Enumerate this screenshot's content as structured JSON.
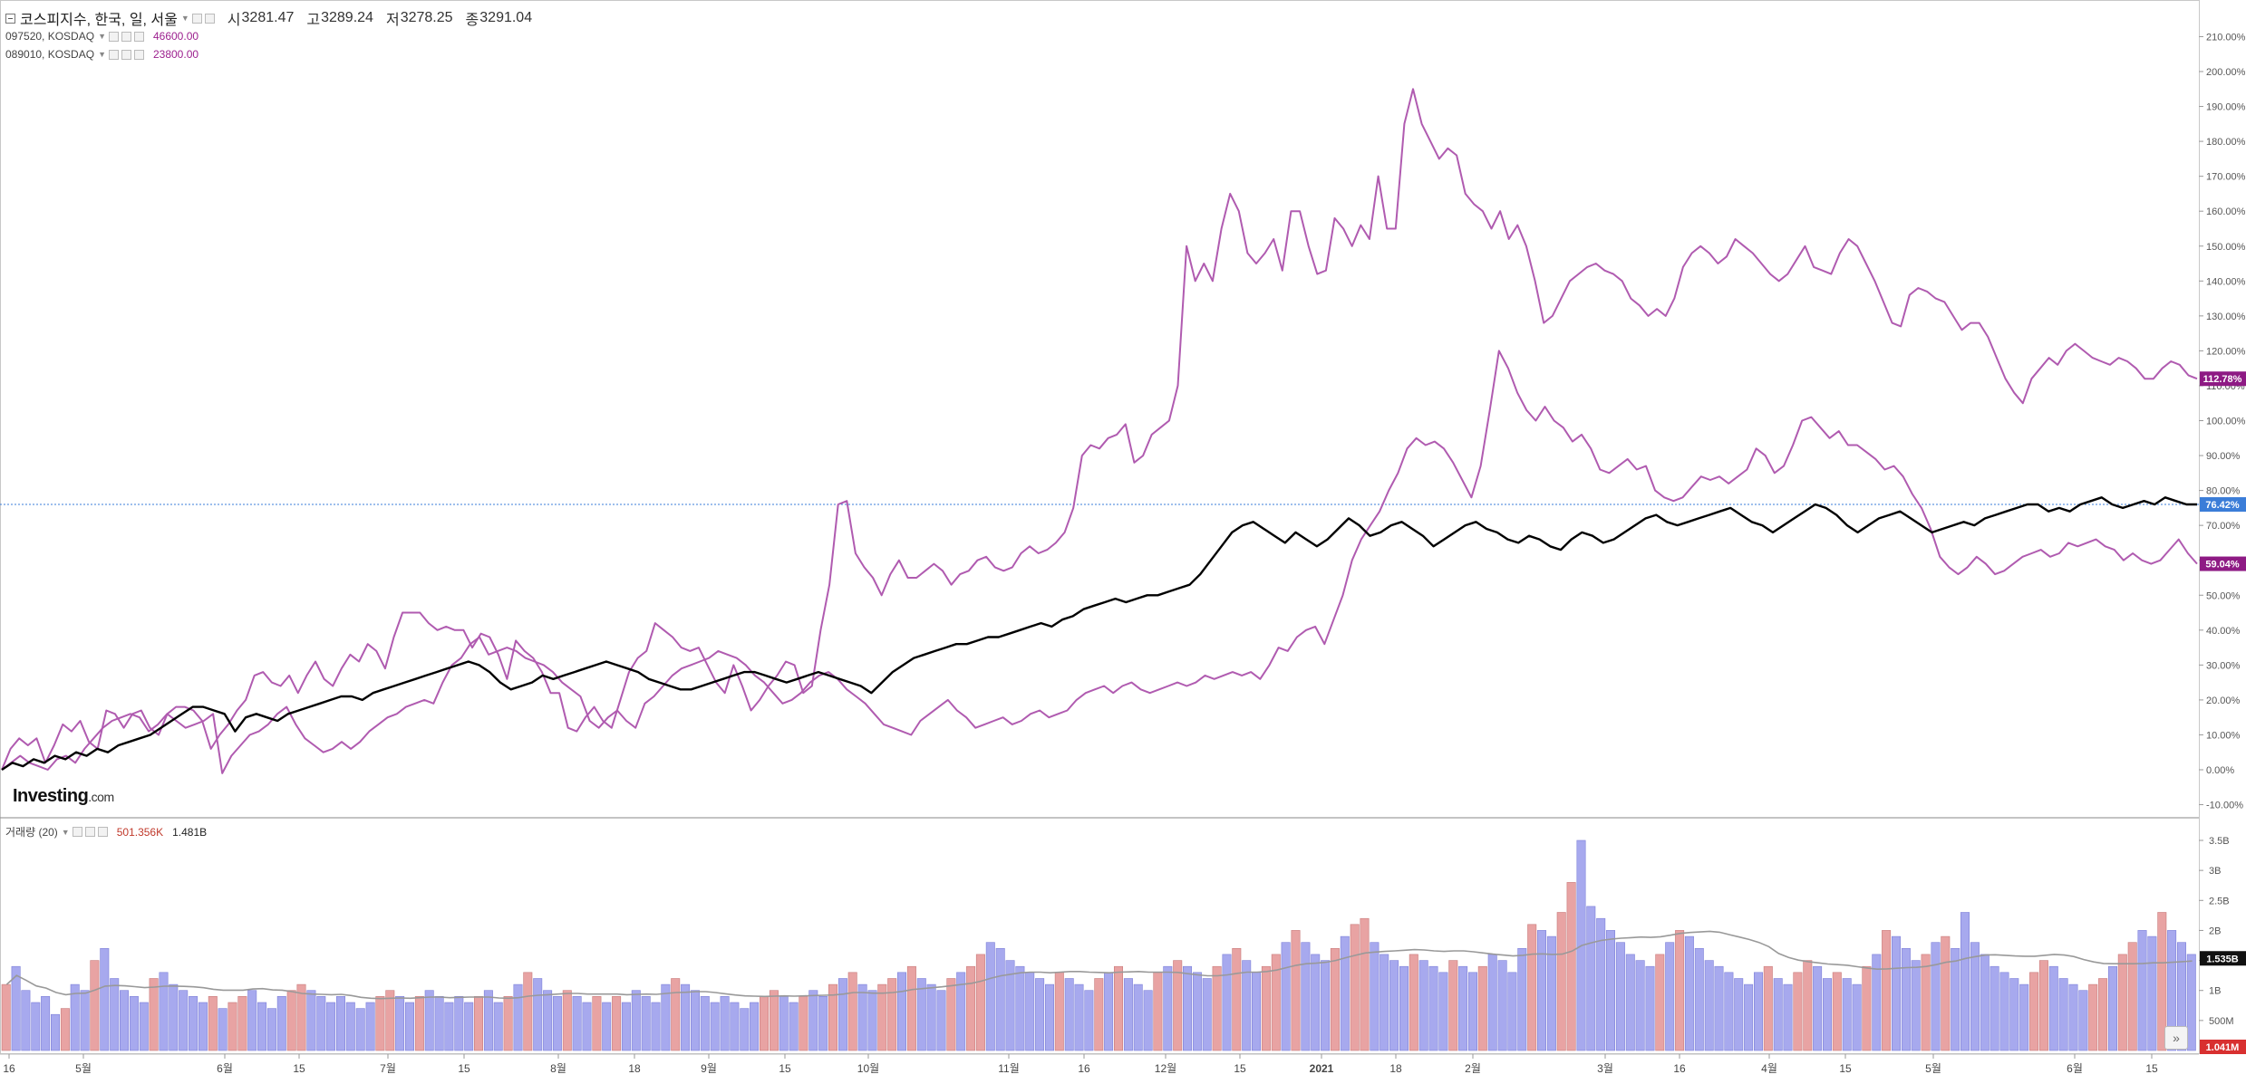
{
  "header": {
    "index_name": "코스피지수, 한국, 일, 서울",
    "open_label": "시",
    "open": "3281.47",
    "high_label": "고",
    "high": "3289.24",
    "low_label": "저",
    "low": "3278.25",
    "close_label": "종",
    "close": "3291.04"
  },
  "compare": [
    {
      "symbol": "097520, KOSDAQ",
      "value": "46600.00"
    },
    {
      "symbol": "089010, KOSDAQ",
      "value": "23800.00"
    }
  ],
  "brand": {
    "main": "Investing",
    "suffix": ".com"
  },
  "volume_legend": {
    "label": "거래량 (20)",
    "value": "501.356K",
    "avg": "1.481B"
  },
  "scroll_button": "»",
  "colors": {
    "index": "#000000",
    "series_a": "#b05bb0",
    "series_b": "#b05bb0",
    "badge_a": "#8e1a84",
    "badge_index": "#3b7dd8",
    "vol_up": "#e8a3a3",
    "vol_down": "#a7a9ee",
    "vol_avg": "#999999",
    "badge_vol": "#111111",
    "badge_vol_red": "#d83030"
  },
  "chart_data": [
    {
      "type": "line",
      "ylabel": "",
      "ylim": [
        -10,
        210
      ],
      "y_ticks": [
        "-10.00%",
        "0.00%",
        "10.00%",
        "20.00%",
        "30.00%",
        "40.00%",
        "50.00%",
        "60.00%",
        "70.00%",
        "80.00%",
        "90.00%",
        "100.00%",
        "110.00%",
        "120.00%",
        "130.00%",
        "140.00%",
        "150.00%",
        "160.00%",
        "170.00%",
        "180.00%",
        "190.00%",
        "200.00%",
        "210.00%"
      ],
      "x_ticks": [
        "16",
        "5월",
        "6월",
        "15",
        "7월",
        "15",
        "8월",
        "18",
        "9월",
        "15",
        "10월",
        "11월",
        "16",
        "12월",
        "15",
        "2021",
        "18",
        "2월",
        "3월",
        "16",
        "4월",
        "15",
        "5월",
        "6월",
        "15"
      ],
      "badges": {
        "series_a_last": "112.78%",
        "index_last": "76.42%",
        "series_b_last": "59.04%"
      },
      "series": [
        {
          "name": "097520, KOSDAQ",
          "values": [
            0,
            6,
            9,
            7,
            9,
            2,
            7,
            13,
            11,
            14,
            8,
            6,
            17,
            16,
            12,
            16,
            17,
            12,
            10,
            16,
            18,
            18,
            17,
            14,
            6,
            10,
            13,
            17,
            20,
            27,
            28,
            25,
            24,
            27,
            22,
            27,
            31,
            26,
            24,
            29,
            33,
            31,
            36,
            34,
            29,
            38,
            45,
            45,
            45,
            42,
            40,
            41,
            40,
            40,
            35,
            39,
            38,
            33,
            26,
            37,
            34,
            32,
            28,
            22,
            22,
            12,
            11,
            15,
            18,
            14,
            12,
            20,
            28,
            32,
            34,
            42,
            40,
            38,
            35,
            34,
            35,
            30,
            25,
            22,
            30,
            24,
            17,
            20,
            24,
            27,
            31,
            30,
            22,
            24,
            40,
            53,
            76,
            77,
            62,
            58,
            55,
            50,
            56,
            60,
            55,
            55,
            57,
            59,
            57,
            53,
            56,
            57,
            60,
            61,
            58,
            57,
            58,
            62,
            64,
            62,
            63,
            65,
            68,
            75,
            90,
            93,
            92,
            95,
            96,
            99,
            88,
            90,
            96,
            98,
            100,
            110,
            150,
            140,
            145,
            140,
            155,
            165,
            160,
            148,
            145,
            148,
            152,
            143,
            160,
            160,
            150,
            142,
            143,
            158,
            155,
            150,
            156,
            152,
            170,
            155,
            155,
            185,
            195,
            185,
            180,
            175,
            178,
            176,
            165,
            162,
            160,
            155,
            160,
            152,
            156,
            150,
            140,
            128,
            130,
            135,
            140,
            142,
            144,
            145,
            143,
            142,
            140,
            135,
            133,
            130,
            132,
            130,
            135,
            144,
            148,
            150,
            148,
            145,
            147,
            152,
            150,
            148,
            145,
            142,
            140,
            142,
            146,
            150,
            144,
            143,
            142,
            148,
            152,
            150,
            145,
            140,
            134,
            128,
            127,
            136,
            138,
            137,
            135,
            134,
            130,
            126,
            128,
            128,
            124,
            118,
            112,
            108,
            105,
            112,
            115,
            118,
            116,
            120,
            122,
            120,
            118,
            117,
            116,
            118,
            117,
            115,
            112,
            112,
            115,
            117,
            116,
            113,
            112
          ]
        },
        {
          "name": "089010, KOSDAQ",
          "values": [
            0,
            2,
            4,
            2,
            1,
            0,
            3,
            4,
            2,
            6,
            9,
            12,
            14,
            15,
            16,
            15,
            11,
            13,
            16,
            14,
            12,
            13,
            14,
            16,
            -1,
            4,
            7,
            10,
            11,
            13,
            16,
            18,
            13,
            9,
            7,
            5,
            6,
            8,
            6,
            8,
            11,
            13,
            15,
            16,
            18,
            19,
            20,
            19,
            25,
            30,
            32,
            36,
            38,
            33,
            34,
            35,
            34,
            32,
            31,
            30,
            28,
            25,
            23,
            21,
            14,
            12,
            15,
            17,
            14,
            12,
            19,
            21,
            24,
            27,
            29,
            30,
            31,
            32,
            34,
            33,
            32,
            30,
            27,
            25,
            22,
            19,
            20,
            22,
            25,
            27,
            28,
            26,
            23,
            21,
            19,
            16,
            13,
            12,
            11,
            10,
            14,
            16,
            18,
            20,
            17,
            15,
            12,
            13,
            14,
            15,
            13,
            14,
            16,
            17,
            15,
            16,
            17,
            20,
            22,
            23,
            24,
            22,
            24,
            25,
            23,
            22,
            23,
            24,
            25,
            24,
            25,
            27,
            26,
            27,
            28,
            27,
            28,
            26,
            30,
            35,
            34,
            38,
            40,
            41,
            36,
            43,
            50,
            60,
            66,
            70,
            74,
            80,
            85,
            92,
            95,
            93,
            94,
            92,
            88,
            83,
            78,
            87,
            103,
            120,
            115,
            108,
            103,
            100,
            104,
            100,
            98,
            94,
            96,
            92,
            86,
            85,
            87,
            89,
            86,
            87,
            80,
            78,
            77,
            78,
            81,
            84,
            83,
            84,
            82,
            84,
            86,
            92,
            90,
            85,
            87,
            93,
            100,
            101,
            98,
            95,
            97,
            93,
            93,
            91,
            89,
            86,
            87,
            84,
            79,
            75,
            69,
            61,
            58,
            56,
            58,
            61,
            59,
            56,
            57,
            59,
            61,
            62,
            63,
            61,
            62,
            65,
            64,
            65,
            66,
            64,
            63,
            60,
            62,
            60,
            59,
            60,
            63,
            66,
            62,
            59
          ]
        },
        {
          "name": "코스피지수",
          "values": [
            0,
            2,
            1,
            3,
            2,
            4,
            3,
            5,
            4,
            6,
            5,
            7,
            8,
            9,
            10,
            12,
            14,
            16,
            18,
            18,
            17,
            16,
            11,
            15,
            16,
            15,
            14,
            16,
            17,
            18,
            19,
            20,
            21,
            21,
            20,
            22,
            23,
            24,
            25,
            26,
            27,
            28,
            29,
            30,
            31,
            30,
            28,
            25,
            23,
            24,
            25,
            27,
            26,
            27,
            28,
            29,
            30,
            31,
            30,
            29,
            28,
            26,
            25,
            24,
            23,
            23,
            24,
            25,
            26,
            27,
            28,
            28,
            27,
            26,
            25,
            26,
            27,
            28,
            27,
            26,
            25,
            24,
            22,
            25,
            28,
            30,
            32,
            33,
            34,
            35,
            36,
            36,
            37,
            38,
            38,
            39,
            40,
            41,
            42,
            41,
            43,
            44,
            46,
            47,
            48,
            49,
            48,
            49,
            50,
            50,
            51,
            52,
            53,
            56,
            60,
            64,
            68,
            70,
            71,
            69,
            67,
            65,
            68,
            66,
            64,
            66,
            69,
            72,
            70,
            67,
            68,
            70,
            71,
            69,
            67,
            64,
            66,
            68,
            70,
            71,
            69,
            68,
            66,
            65,
            67,
            66,
            64,
            63,
            66,
            68,
            67,
            65,
            66,
            68,
            70,
            72,
            73,
            71,
            70,
            71,
            72,
            73,
            74,
            75,
            73,
            71,
            70,
            68,
            70,
            72,
            74,
            76,
            75,
            73,
            70,
            68,
            70,
            72,
            73,
            74,
            72,
            70,
            68,
            69,
            70,
            71,
            70,
            72,
            73,
            74,
            75,
            76,
            76,
            74,
            75,
            74,
            76,
            77,
            78,
            76,
            75,
            76,
            77,
            76,
            78,
            77,
            76,
            76
          ]
        }
      ]
    },
    {
      "type": "bar",
      "ylabel": "",
      "ylim": [
        0,
        3.7
      ],
      "y_ticks": [
        "500M",
        "1B",
        "1.5B",
        "2B",
        "2.5B",
        "3B",
        "3.5B"
      ],
      "badges": {
        "volume_last": "1.535B",
        "volume_low": "1.041M"
      },
      "series": [
        {
          "name": "거래량",
          "values": [
            1.1,
            1.4,
            1.0,
            0.8,
            0.9,
            0.6,
            0.7,
            1.1,
            1.0,
            1.5,
            1.7,
            1.2,
            1.0,
            0.9,
            0.8,
            1.2,
            1.3,
            1.1,
            1.0,
            0.9,
            0.8,
            0.9,
            0.7,
            0.8,
            0.9,
            1.0,
            0.8,
            0.7,
            0.9,
            1.0,
            1.1,
            1.0,
            0.9,
            0.8,
            0.9,
            0.8,
            0.7,
            0.8,
            0.9,
            1.0,
            0.9,
            0.8,
            0.9,
            1.0,
            0.9,
            0.8,
            0.9,
            0.8,
            0.9,
            1.0,
            0.8,
            0.9,
            1.1,
            1.3,
            1.2,
            1.0,
            0.9,
            1.0,
            0.9,
            0.8,
            0.9,
            0.8,
            0.9,
            0.8,
            1.0,
            0.9,
            0.8,
            1.1,
            1.2,
            1.1,
            1.0,
            0.9,
            0.8,
            0.9,
            0.8,
            0.7,
            0.8,
            0.9,
            1.0,
            0.9,
            0.8,
            0.9,
            1.0,
            0.9,
            1.1,
            1.2,
            1.3,
            1.1,
            1.0,
            1.1,
            1.2,
            1.3,
            1.4,
            1.2,
            1.1,
            1.0,
            1.2,
            1.3,
            1.4,
            1.6,
            1.8,
            1.7,
            1.5,
            1.4,
            1.3,
            1.2,
            1.1,
            1.3,
            1.2,
            1.1,
            1.0,
            1.2,
            1.3,
            1.4,
            1.2,
            1.1,
            1.0,
            1.3,
            1.4,
            1.5,
            1.4,
            1.3,
            1.2,
            1.4,
            1.6,
            1.7,
            1.5,
            1.3,
            1.4,
            1.6,
            1.8,
            2.0,
            1.8,
            1.6,
            1.5,
            1.7,
            1.9,
            2.1,
            2.2,
            1.8,
            1.6,
            1.5,
            1.4,
            1.6,
            1.5,
            1.4,
            1.3,
            1.5,
            1.4,
            1.3,
            1.4,
            1.6,
            1.5,
            1.3,
            1.7,
            2.1,
            2.0,
            1.9,
            2.3,
            2.8,
            3.5,
            2.4,
            2.2,
            2.0,
            1.8,
            1.6,
            1.5,
            1.4,
            1.6,
            1.8,
            2.0,
            1.9,
            1.7,
            1.5,
            1.4,
            1.3,
            1.2,
            1.1,
            1.3,
            1.4,
            1.2,
            1.1,
            1.3,
            1.5,
            1.4,
            1.2,
            1.3,
            1.2,
            1.1,
            1.4,
            1.6,
            2.0,
            1.9,
            1.7,
            1.5,
            1.6,
            1.8,
            1.9,
            1.7,
            2.3,
            1.8,
            1.6,
            1.4,
            1.3,
            1.2,
            1.1,
            1.3,
            1.5,
            1.4,
            1.2,
            1.1,
            1.0,
            1.1,
            1.2,
            1.4,
            1.6,
            1.8,
            2.0,
            1.9,
            2.3,
            2.0,
            1.8,
            1.6
          ]
        }
      ]
    }
  ]
}
